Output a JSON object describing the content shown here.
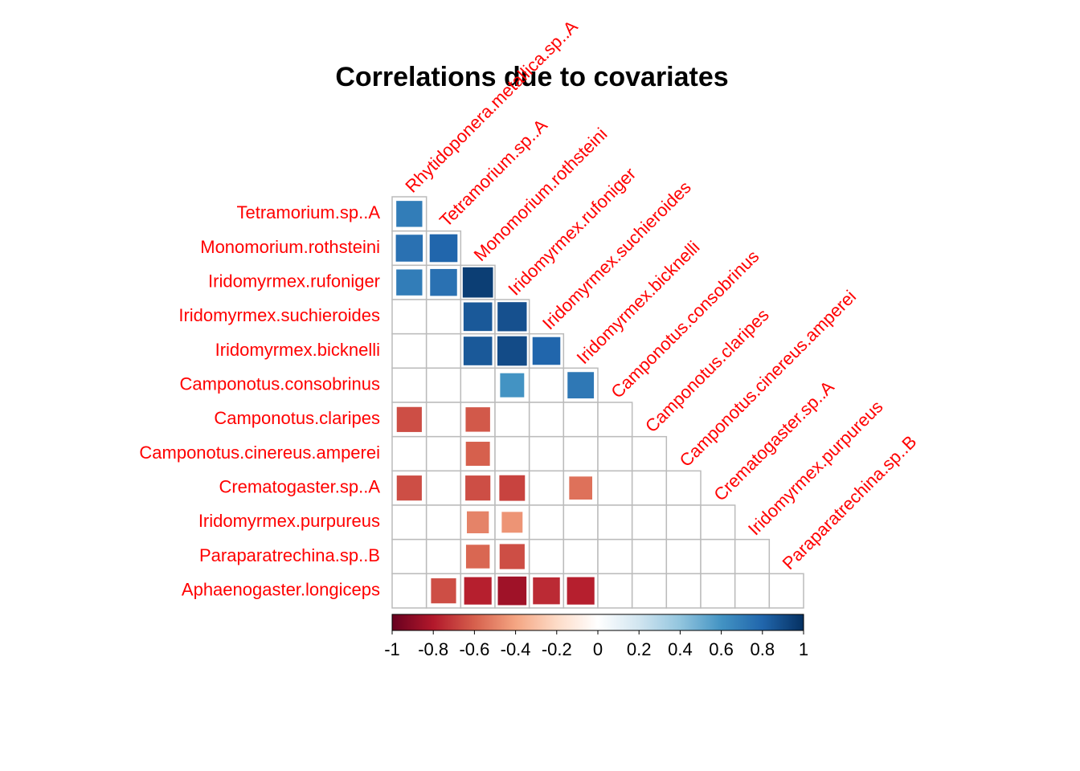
{
  "chart_data": {
    "type": "corrplot",
    "title": "Correlations due to covariates",
    "columns": [
      "Rhytidoponera.metallica.sp..A",
      "Tetramorium.sp..A",
      "Monomorium.rothsteini",
      "Iridomyrmex.rufoniger",
      "Iridomyrmex.suchieroides",
      "Iridomyrmex.bicknelli",
      "Camponotus.consobrinus",
      "Camponotus.claripes",
      "Camponotus.cinereus.amperei",
      "Crematogaster.sp..A",
      "Iridomyrmex.purpureus",
      "Paraparatrechina.sp..B"
    ],
    "rows": [
      "Tetramorium.sp..A",
      "Monomorium.rothsteini",
      "Iridomyrmex.rufoniger",
      "Iridomyrmex.suchieroides",
      "Iridomyrmex.bicknelli",
      "Camponotus.consobrinus",
      "Camponotus.claripes",
      "Camponotus.cinereus.amperei",
      "Crematogaster.sp..A",
      "Iridomyrmex.purpureus",
      "Paraparatrechina.sp..B",
      "Aphaenogaster.longiceps"
    ],
    "values": [
      [
        0.7
      ],
      [
        0.75,
        0.8
      ],
      [
        0.7,
        0.75,
        0.95
      ],
      [
        null,
        null,
        0.85,
        0.88
      ],
      [
        null,
        null,
        0.85,
        0.9,
        0.8
      ],
      [
        null,
        null,
        null,
        0.6,
        null,
        0.72
      ],
      [
        -0.65,
        null,
        -0.62,
        null,
        null,
        null,
        null
      ],
      [
        null,
        null,
        -0.6,
        null,
        null,
        null,
        null,
        null
      ],
      [
        -0.65,
        null,
        -0.65,
        -0.68,
        null,
        -0.55,
        null,
        null,
        null
      ],
      [
        null,
        null,
        -0.5,
        -0.45,
        null,
        null,
        null,
        null,
        null,
        null
      ],
      [
        null,
        null,
        -0.58,
        -0.65,
        null,
        null,
        null,
        null,
        null,
        null,
        null
      ],
      [
        null,
        -0.65,
        -0.78,
        -0.85,
        -0.75,
        -0.78,
        null,
        null,
        null,
        null,
        null,
        null
      ]
    ],
    "label_color": "#ff0000",
    "colorscale": [
      "#67001F",
      "#B2182B",
      "#D6604D",
      "#F4A582",
      "#FDDBC7",
      "#FFFFFF",
      "#D1E5F0",
      "#92C5DE",
      "#4393C3",
      "#2166AC",
      "#053061"
    ],
    "clim": [
      -1,
      1
    ],
    "cticks": [
      -1,
      -0.8,
      -0.6,
      -0.4,
      -0.2,
      0,
      0.2,
      0.4,
      0.6,
      0.8,
      1
    ]
  }
}
